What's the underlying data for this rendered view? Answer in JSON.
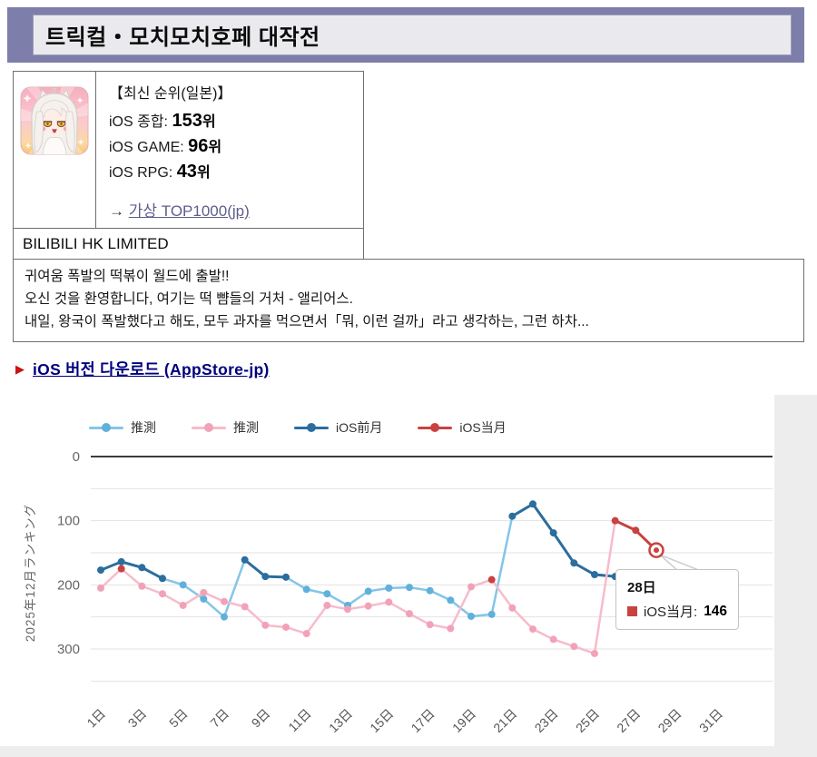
{
  "page": {
    "title": "트릭컬・모치모치호페 대작전",
    "rank_header": "【최신 순위(일본)】",
    "ranks": [
      {
        "label": "iOS 종합:",
        "value": "153",
        "suffix": "위"
      },
      {
        "label": "iOS GAME:",
        "value": "96",
        "suffix": "위"
      },
      {
        "label": "iOS RPG:",
        "value": "43",
        "suffix": "위"
      }
    ],
    "top1000_arrow": "→",
    "top1000_link": "가상 TOP1000(jp)",
    "company": "BILIBILI HK LIMITED",
    "description_lines": [
      "귀여움 폭발의 떡볶이 월드에 출발!!",
      "오신 것을 환영합니다, 여기는 떡 뺨들의 거처 - 앨리어스.",
      "내일, 왕국이 폭발했다고 해도, 모두 과자를 먹으면서「뭐, 이런 걸까」라고 생각하는, 그런 하차..."
    ],
    "download_bullet": "▶",
    "download_link": "iOS 버전 다운로드 (AppStore-jp)"
  },
  "chart_data": {
    "type": "line",
    "ylabel": "2025年12月ランキング",
    "y_axis_reversed": true,
    "ylim": [
      0,
      350
    ],
    "grid_step": 50,
    "y_ticks": [
      0,
      100,
      200,
      300
    ],
    "x_days": [
      1,
      31
    ],
    "x_tick_labels": [
      "1日",
      "3日",
      "5日",
      "7日",
      "9日",
      "11日",
      "13日",
      "15日",
      "17日",
      "19日",
      "21日",
      "23日",
      "25日",
      "27日",
      "29日",
      "31日"
    ],
    "legend": [
      {
        "label": "推測",
        "line_color": "#84c5e8",
        "dot_color": "#5fb0da"
      },
      {
        "label": "推測",
        "line_color": "#f6bccb",
        "dot_color": "#f2a2b8"
      },
      {
        "label": "iOS前月",
        "line_color": "#2b6d9e",
        "dot_color": "#2b6d9e"
      },
      {
        "label": "iOS当月",
        "line_color": "#c8423f",
        "dot_color": "#c8423f"
      }
    ],
    "estimated_label": "推測",
    "series": [
      {
        "name": "iOS前月",
        "colors": {
          "measured": "#2b6d9e",
          "estimated": "#84c5e8",
          "estimated_dot": "#5fb0da"
        },
        "points": [
          {
            "day": 1,
            "value": 177,
            "measured": true
          },
          {
            "day": 2,
            "value": 164,
            "measured": true
          },
          {
            "day": 3,
            "value": 173,
            "measured": true
          },
          {
            "day": 4,
            "value": 190,
            "measured": true
          },
          {
            "day": 5,
            "value": 200,
            "measured": false
          },
          {
            "day": 6,
            "value": 222,
            "measured": false
          },
          {
            "day": 7,
            "value": 250,
            "measured": false
          },
          {
            "day": 8,
            "value": 161,
            "measured": true
          },
          {
            "day": 9,
            "value": 187,
            "measured": true
          },
          {
            "day": 10,
            "value": 188,
            "measured": true
          },
          {
            "day": 11,
            "value": 207,
            "measured": false
          },
          {
            "day": 12,
            "value": 214,
            "measured": false
          },
          {
            "day": 13,
            "value": 232,
            "measured": false
          },
          {
            "day": 14,
            "value": 210,
            "measured": false
          },
          {
            "day": 15,
            "value": 205,
            "measured": false
          },
          {
            "day": 16,
            "value": 204,
            "measured": false
          },
          {
            "day": 17,
            "value": 209,
            "measured": false
          },
          {
            "day": 18,
            "value": 224,
            "measured": false
          },
          {
            "day": 19,
            "value": 249,
            "measured": false
          },
          {
            "day": 20,
            "value": 246,
            "measured": false
          },
          {
            "day": 21,
            "value": 93,
            "measured": true
          },
          {
            "day": 22,
            "value": 74,
            "measured": true
          },
          {
            "day": 23,
            "value": 119,
            "measured": true
          },
          {
            "day": 24,
            "value": 166,
            "measured": true
          },
          {
            "day": 25,
            "value": 184,
            "measured": true
          },
          {
            "day": 26,
            "value": 187,
            "measured": true
          }
        ]
      },
      {
        "name": "iOS当月",
        "colors": {
          "measured": "#c8423f",
          "estimated": "#f6bccb",
          "estimated_dot": "#f2a2b8"
        },
        "points": [
          {
            "day": 1,
            "value": 205,
            "measured": false
          },
          {
            "day": 2,
            "value": 175,
            "measured": true
          },
          {
            "day": 3,
            "value": 202,
            "measured": false
          },
          {
            "day": 4,
            "value": 214,
            "measured": false
          },
          {
            "day": 5,
            "value": 232,
            "measured": false
          },
          {
            "day": 6,
            "value": 212,
            "measured": false
          },
          {
            "day": 7,
            "value": 226,
            "measured": false
          },
          {
            "day": 8,
            "value": 234,
            "measured": false
          },
          {
            "day": 9,
            "value": 263,
            "measured": false
          },
          {
            "day": 10,
            "value": 266,
            "measured": false
          },
          {
            "day": 11,
            "value": 276,
            "measured": false
          },
          {
            "day": 12,
            "value": 232,
            "measured": false
          },
          {
            "day": 13,
            "value": 238,
            "measured": false
          },
          {
            "day": 14,
            "value": 233,
            "measured": false
          },
          {
            "day": 15,
            "value": 227,
            "measured": false
          },
          {
            "day": 16,
            "value": 245,
            "measured": false
          },
          {
            "day": 17,
            "value": 262,
            "measured": false
          },
          {
            "day": 18,
            "value": 268,
            "measured": false
          },
          {
            "day": 19,
            "value": 203,
            "measured": false
          },
          {
            "day": 20,
            "value": 192,
            "measured": true
          },
          {
            "day": 21,
            "value": 236,
            "measured": false
          },
          {
            "day": 22,
            "value": 269,
            "measured": false
          },
          {
            "day": 23,
            "value": 285,
            "measured": false
          },
          {
            "day": 24,
            "value": 296,
            "measured": false
          },
          {
            "day": 25,
            "value": 307,
            "measured": false
          },
          {
            "day": 26,
            "value": 100,
            "measured": true
          },
          {
            "day": 27,
            "value": 115,
            "measured": true
          },
          {
            "day": 28,
            "value": 146,
            "measured": true
          }
        ]
      }
    ],
    "tooltip": {
      "day_label": "28日",
      "series_label": "iOS当月:",
      "value": "146",
      "highlight_day": 28,
      "highlight_series": 1
    }
  },
  "colors": {
    "accent_bar": "#7d7ea9",
    "zero_line": "#3c3c3c",
    "grid_line": "#e2e2e2",
    "axis_text": "#666666",
    "tooltip_swatch": "#c8423f",
    "download_bullet": "#cc1111"
  }
}
